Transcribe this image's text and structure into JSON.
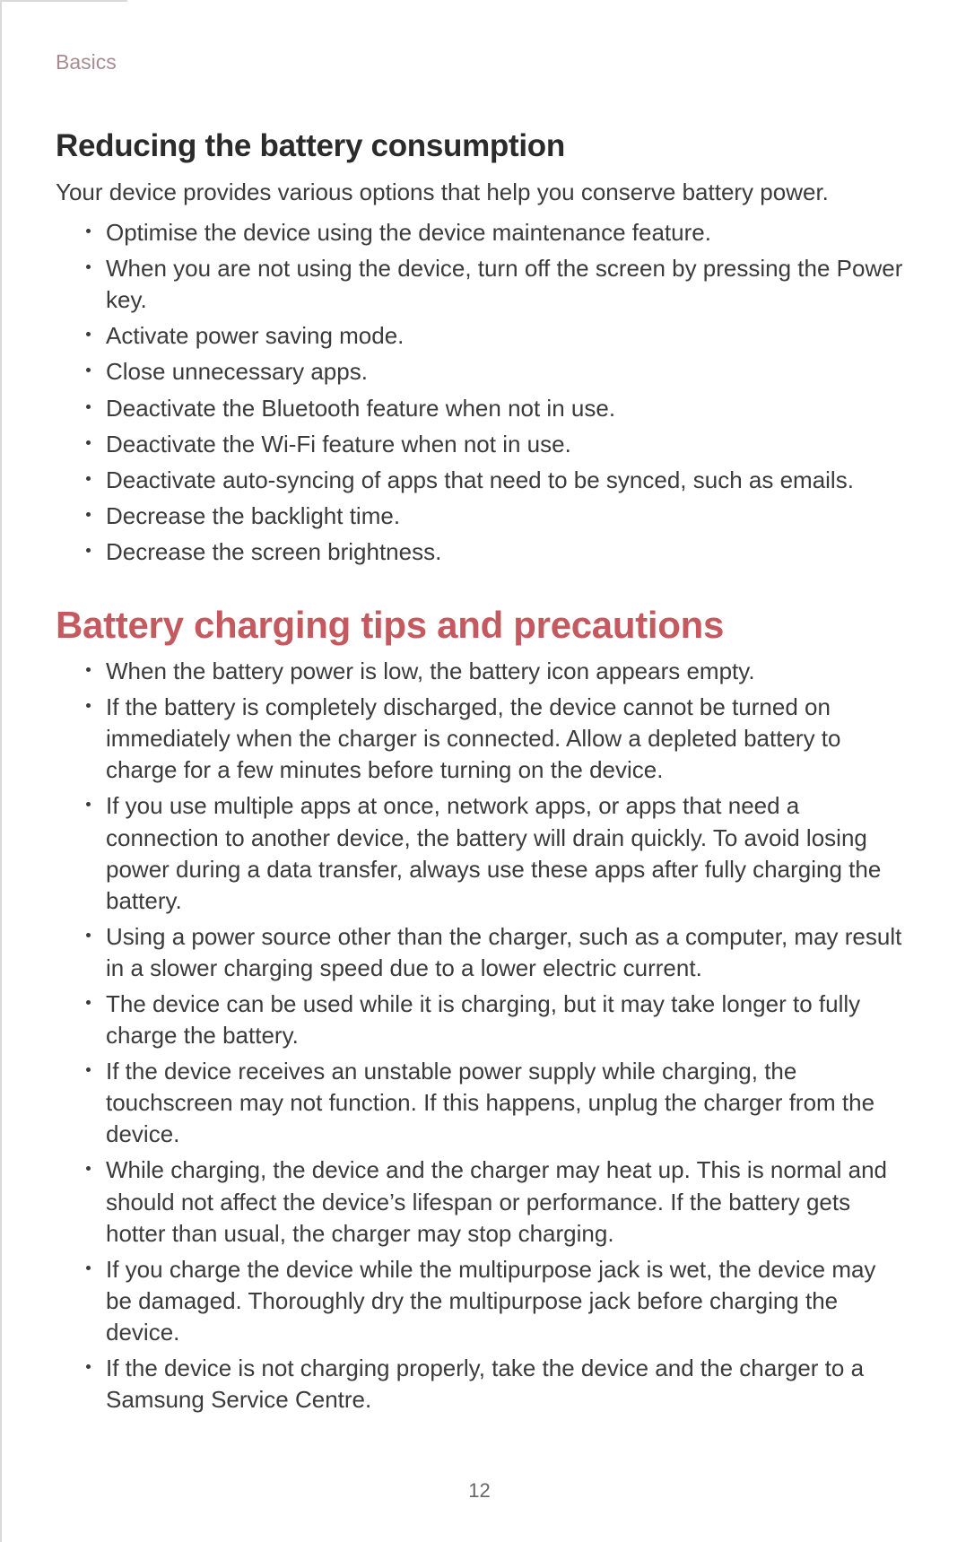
{
  "breadcrumb": "Basics",
  "section1": {
    "heading": "Reducing the battery consumption",
    "intro": "Your device provides various options that help you conserve battery power.",
    "bullets": [
      "Optimise the device using the device maintenance feature.",
      "When you are not using the device, turn off the screen by pressing the Power key.",
      "Activate power saving mode.",
      "Close unnecessary apps.",
      "Deactivate the Bluetooth feature when not in use.",
      "Deactivate the Wi-Fi feature when not in use.",
      "Deactivate auto-syncing of apps that need to be synced, such as emails.",
      "Decrease the backlight time.",
      "Decrease the screen brightness."
    ]
  },
  "section2": {
    "heading": "Battery charging tips and precautions",
    "bullets": [
      "When the battery power is low, the battery icon appears empty.",
      "If the battery is completely discharged, the device cannot be turned on immediately when the charger is connected. Allow a depleted battery to charge for a few minutes before turning on the device.",
      "If you use multiple apps at once, network apps, or apps that need a connection to another device, the battery will drain quickly. To avoid losing power during a data transfer, always use these apps after fully charging the battery.",
      "Using a power source other than the charger, such as a computer, may result in a slower charging speed due to a lower electric current.",
      "The device can be used while it is charging, but it may take longer to fully charge the battery.",
      "If the device receives an unstable power supply while charging, the touchscreen may not function. If this happens, unplug the charger from the device.",
      "While charging, the device and the charger may heat up. This is normal and should not affect the device’s lifespan or performance. If the battery gets hotter than usual, the charger may stop charging.",
      "If you charge the device while the multipurpose jack is wet, the device may be damaged. Thoroughly dry the multipurpose jack before charging the device.",
      "If the device is not charging properly, take the device and the charger to a Samsung Service Centre."
    ]
  },
  "pageNumber": "12",
  "colors": {
    "breadcrumb": "#a98b93",
    "accentHeading": "#c45a5f",
    "bodyText": "#3b3b3b",
    "heading": "#2b2b2b",
    "border": "#d9d9d9",
    "pageNumber": "#666666",
    "background": "#ffffff"
  },
  "typography": {
    "breadcrumb_fontsize": 23,
    "h2_fontsize": 35,
    "h1_accent_fontsize": 42,
    "body_fontsize": 26,
    "line_height": 1.35
  }
}
